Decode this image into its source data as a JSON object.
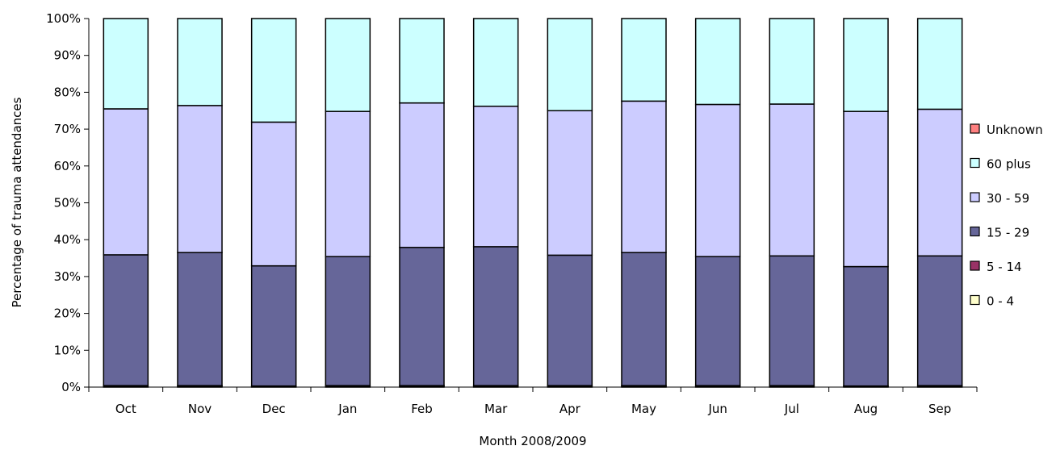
{
  "chart_data": {
    "type": "bar",
    "stacked": true,
    "percent": true,
    "xlabel": "Month 2008/2009",
    "ylabel": "Percentage of trauma attendances",
    "ylim": [
      0,
      100
    ],
    "y_ticks": [
      "0%",
      "10%",
      "20%",
      "30%",
      "40%",
      "50%",
      "60%",
      "70%",
      "80%",
      "90%",
      "100%"
    ],
    "categories": [
      "Oct",
      "Nov",
      "Dec",
      "Jan",
      "Feb",
      "Mar",
      "Apr",
      "May",
      "Jun",
      "Jul",
      "Aug",
      "Sep"
    ],
    "legend_position": "right",
    "series": [
      {
        "name": "0 - 4",
        "color": "#ffffcc",
        "values": [
          0.2,
          0.2,
          0.2,
          0.2,
          0.2,
          0.2,
          0.2,
          0.2,
          0.2,
          0.2,
          0.2,
          0.2
        ]
      },
      {
        "name": "5 - 14",
        "color": "#993366",
        "values": [
          0.2,
          0.2,
          0.1,
          0.2,
          0.2,
          0.2,
          0.2,
          0.2,
          0.2,
          0.2,
          0.1,
          0.2
        ]
      },
      {
        "name": "15 - 29",
        "color": "#666699",
        "values": [
          35.5,
          36.1,
          32.6,
          35.0,
          37.5,
          37.7,
          35.4,
          36.1,
          35.0,
          35.2,
          32.4,
          35.2
        ]
      },
      {
        "name": "30 - 59",
        "color": "#ccccff",
        "values": [
          39.6,
          39.9,
          39.0,
          39.4,
          39.2,
          38.1,
          39.2,
          41.1,
          41.3,
          41.2,
          42.1,
          39.8
        ]
      },
      {
        "name": "60 plus",
        "color": "#ccffff",
        "values": [
          24.5,
          23.6,
          28.1,
          25.2,
          22.9,
          23.8,
          25.0,
          22.4,
          23.3,
          23.2,
          25.2,
          24.6
        ]
      },
      {
        "name": "Unknown",
        "color": "#ff8080",
        "values": [
          0,
          0,
          0,
          0,
          0,
          0,
          0,
          0,
          0,
          0,
          0,
          0
        ]
      }
    ]
  }
}
